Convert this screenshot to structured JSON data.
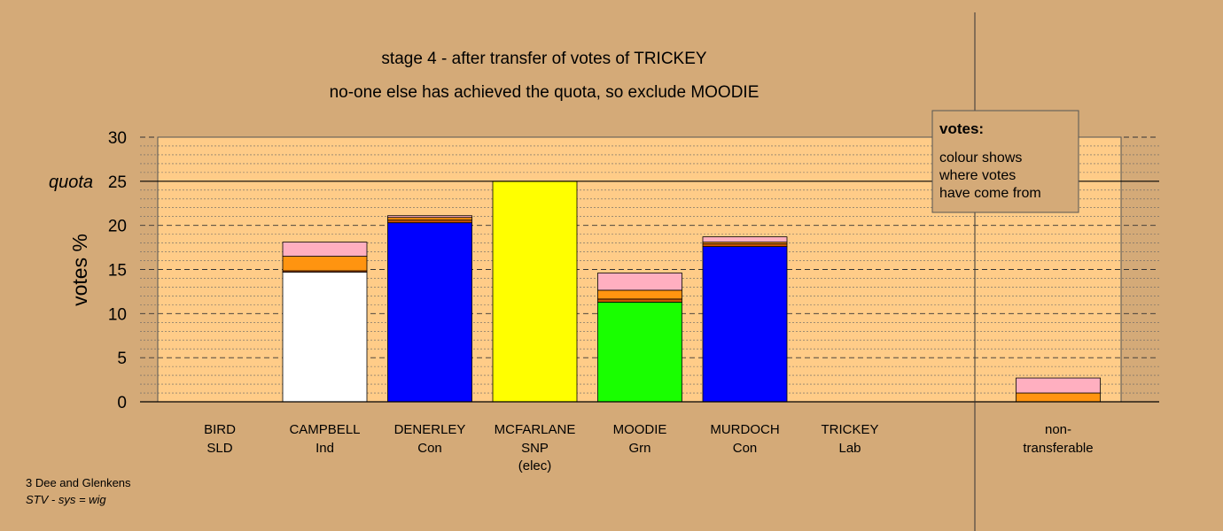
{
  "chart_data": {
    "type": "bar",
    "title": "stage 4 - after transfer of votes of TRICKEY",
    "subtitle": "no-one else has achieved the quota, so exclude MOODIE",
    "ylabel": "votes %",
    "ylim": [
      0,
      30
    ],
    "yticks": [
      "0",
      "5",
      "10",
      "15",
      "20",
      "25",
      "30"
    ],
    "quota_label": "quota",
    "quota_value": 25,
    "candidates": [
      {
        "name": "BIRD",
        "party": "SLD",
        "note": "",
        "segments": []
      },
      {
        "name": "CAMPBELL",
        "party": "Ind",
        "note": "",
        "segments": [
          {
            "value": 14.7,
            "color": "#ffffff"
          },
          {
            "value": 0.15,
            "color": "#cc5500"
          },
          {
            "value": 1.65,
            "color": "#ff9410"
          },
          {
            "value": 1.6,
            "color": "#ffafc0"
          }
        ]
      },
      {
        "name": "DENERLEY",
        "party": "Con",
        "note": "",
        "segments": [
          {
            "value": 20.3,
            "color": "#0000ff"
          },
          {
            "value": 0.3,
            "color": "#cc5500"
          },
          {
            "value": 0.3,
            "color": "#ff9410"
          },
          {
            "value": 0.2,
            "color": "#ffafc0"
          }
        ]
      },
      {
        "name": "MCFARLANE",
        "party": "SNP",
        "note": "(elec)",
        "segments": [
          {
            "value": 25.0,
            "color": "#ffff00"
          }
        ]
      },
      {
        "name": "MOODIE",
        "party": "Grn",
        "note": "",
        "segments": [
          {
            "value": 11.3,
            "color": "#19ff00"
          },
          {
            "value": 0.35,
            "color": "#cc5500"
          },
          {
            "value": 1.0,
            "color": "#ff9410"
          },
          {
            "value": 1.95,
            "color": "#ffafc0"
          }
        ]
      },
      {
        "name": "MURDOCH",
        "party": "Con",
        "note": "",
        "segments": [
          {
            "value": 17.6,
            "color": "#0000ff"
          },
          {
            "value": 0.3,
            "color": "#cc5500"
          },
          {
            "value": 0.2,
            "color": "#ff9410"
          },
          {
            "value": 0.6,
            "color": "#ffafc0"
          }
        ]
      },
      {
        "name": "TRICKEY",
        "party": "Lab",
        "note": "",
        "segments": []
      }
    ],
    "nontransferable": {
      "name": "non-",
      "party": "transferable",
      "segments": [
        {
          "value": 1.0,
          "color": "#ff9410"
        },
        {
          "value": 1.7,
          "color": "#ffafc0"
        }
      ]
    },
    "legend": {
      "title": "votes:",
      "lines": [
        "colour shows",
        "where votes",
        "have come from"
      ]
    }
  },
  "footer": {
    "line1": "3 Dee and Glenkens",
    "line2": "STV - sys = wig"
  },
  "colors": {
    "background": "#d4aa78",
    "plot_area": "#ffcc88",
    "legend_box": "#d4aa78"
  }
}
